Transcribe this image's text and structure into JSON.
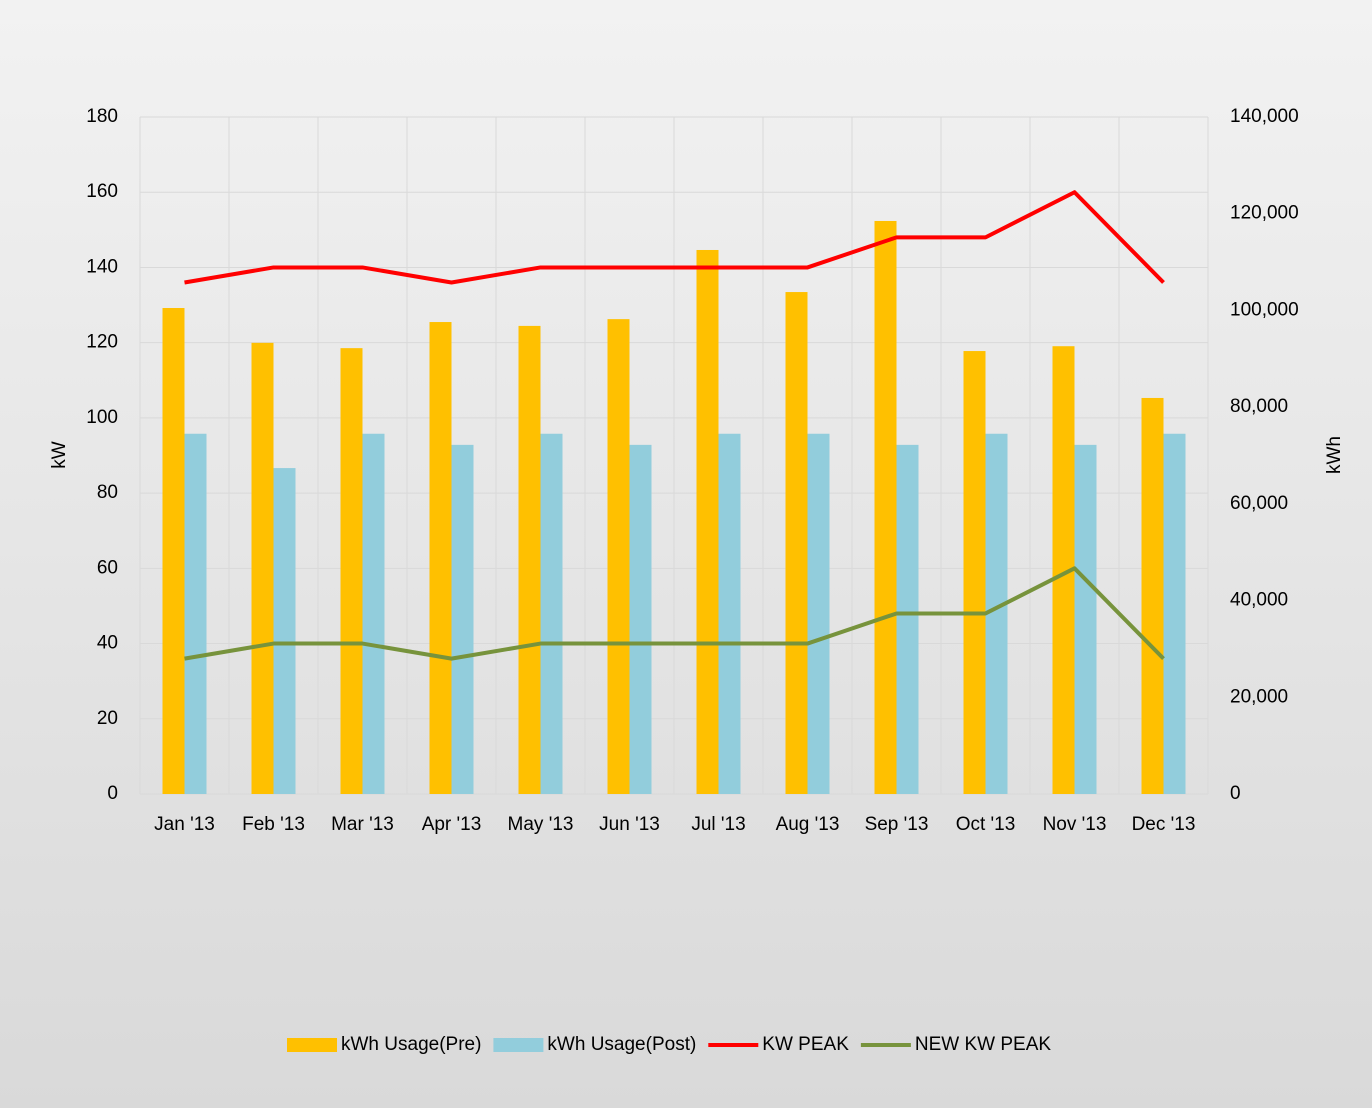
{
  "chart_data": {
    "type": "bar_line",
    "categories": [
      "Jan '13",
      "Feb '13",
      "Mar '13",
      "Apr '13",
      "May '13",
      "Jun '13",
      "Jul '13",
      "Aug '13",
      "Sep '13",
      "Oct '13",
      "Nov '13",
      "Dec '13"
    ],
    "ylabel": "kW",
    "y2label": "kWh",
    "ylim": [
      0,
      180
    ],
    "yticks": [
      0,
      20,
      40,
      60,
      80,
      100,
      120,
      140,
      160,
      180
    ],
    "y2lim": [
      0,
      140000
    ],
    "y2ticks": [
      0,
      {
        "value": 20000,
        "label": "20,000"
      },
      {
        "value": 40000,
        "label": "40,000"
      },
      {
        "value": 60000,
        "label": "60,000"
      },
      {
        "value": 80000,
        "label": "80,000"
      },
      {
        "value": 100000,
        "label": "100,000"
      },
      {
        "value": 120000,
        "label": "120,000"
      },
      {
        "value": 140000,
        "label": "140,000"
      }
    ],
    "grid": true,
    "legend": "bottom",
    "series": [
      {
        "name": "kWh Usage(Pre)",
        "type": "bar",
        "axis": "y2",
        "color": "#ffc000",
        "values": [
          100500,
          93300,
          92200,
          97600,
          96800,
          98200,
          112500,
          103800,
          118500,
          91600,
          92600,
          81900
        ]
      },
      {
        "name": "kWh Usage(Post)",
        "type": "bar",
        "axis": "y2",
        "color": "#92cddc",
        "values": [
          74500,
          67400,
          74500,
          72200,
          74500,
          72200,
          74500,
          74500,
          72200,
          74500,
          72200,
          74500
        ]
      },
      {
        "name": "KW PEAK",
        "type": "line",
        "axis": "y",
        "color": "#ff0000",
        "values": [
          136,
          140,
          140,
          136,
          140,
          140,
          140,
          140,
          148,
          148,
          160,
          136
        ]
      },
      {
        "name": "NEW KW PEAK",
        "type": "line",
        "axis": "y",
        "color": "#77933c",
        "values": [
          36,
          40,
          40,
          36,
          40,
          40,
          40,
          40,
          48,
          48,
          60,
          36
        ]
      }
    ]
  }
}
